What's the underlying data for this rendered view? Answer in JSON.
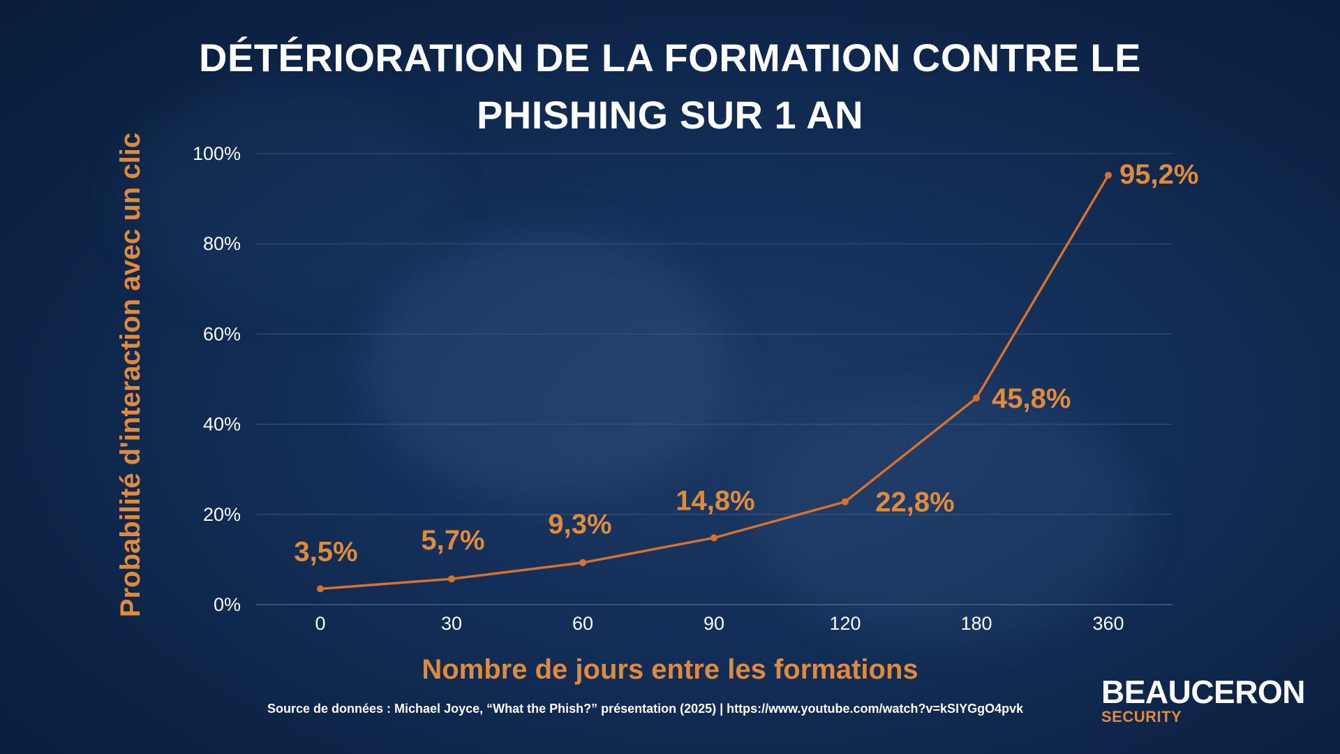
{
  "title_lines": [
    "DÉTÉRIORATION DE LA FORMATION CONTRE LE",
    "PHISHING SUR 1 AN"
  ],
  "colors": {
    "accent": "#e08a3c",
    "line": "#d8702e",
    "text": "#ffffff",
    "grid": "#4a6688",
    "background": "#0d2447"
  },
  "chart_data": {
    "type": "line",
    "title": "DÉTÉRIORATION DE LA FORMATION CONTRE LE PHISHING SUR 1 AN",
    "xlabel": "Nombre de jours entre les formations",
    "ylabel": "Probabilité d'interaction avec un clic",
    "categories": [
      "0",
      "30",
      "60",
      "90",
      "120",
      "180",
      "360"
    ],
    "series": [
      {
        "values": [
          3.5,
          5.7,
          9.3,
          14.8,
          22.8,
          45.8,
          95.2
        ],
        "labels": [
          "3,5%",
          "5,7%",
          "9,3%",
          "14,8%",
          "22,8%",
          "45,8%",
          "95,2%"
        ]
      }
    ],
    "ylim": [
      0,
      100
    ],
    "y_ticks": [
      0,
      20,
      40,
      60,
      80,
      100
    ],
    "y_tick_labels": [
      "0%",
      "20%",
      "40%",
      "60%",
      "80%",
      "100%"
    ],
    "grid": true,
    "legend": false
  },
  "footer": {
    "source": "Source de données : Michael Joyce, “What the Phish?” présentation (2025) | https://www.youtube.com/watch?v=kSIYGgO4pvk"
  },
  "brand": {
    "name": "BEAUCERON",
    "sub": "SECURITY"
  }
}
